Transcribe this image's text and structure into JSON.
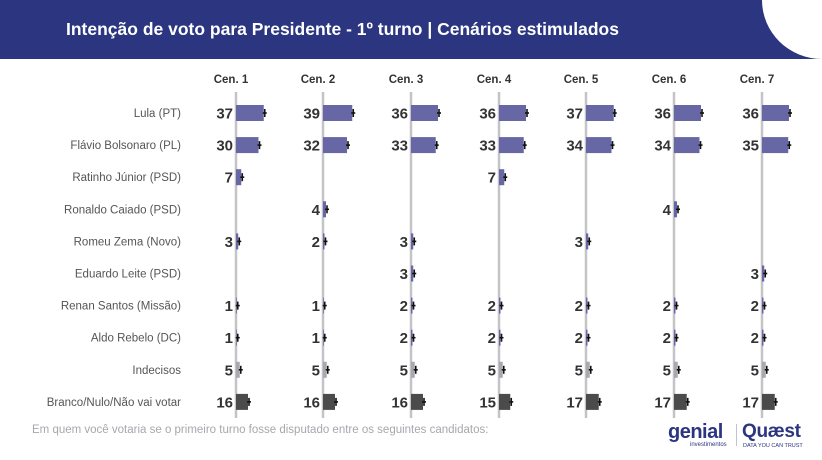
{
  "title": "Intenção de voto para Presidente - 1º turno | Cenários estimulados",
  "subtitle": "Em quem você votaria se o primeiro turno fosse disputado entre os seguintes candidatos:",
  "logos": {
    "genial": "genial",
    "genial_sub": "investimentos",
    "quaest": "Quæst",
    "quaest_sub": "DATA YOU CAN TRUST"
  },
  "colors": {
    "header": "#2b3580",
    "candidate_bar": "#6667a4",
    "indecisos_bar": "#a9a9ad",
    "branco_bar": "#4b4b4b",
    "axis_line": "#c4c4c8"
  },
  "chart_data": {
    "type": "bar",
    "scenarios": [
      "Cen. 1",
      "Cen. 2",
      "Cen. 3",
      "Cen. 4",
      "Cen. 5",
      "Cen. 6",
      "Cen. 7"
    ],
    "rows": [
      {
        "label": "Lula (PT)",
        "kind": "candidate",
        "values": [
          37,
          39,
          36,
          36,
          37,
          36,
          36
        ]
      },
      {
        "label": "Flávio Bolsonaro (PL)",
        "kind": "candidate",
        "values": [
          30,
          32,
          33,
          33,
          34,
          34,
          35
        ]
      },
      {
        "label": "Ratinho Júnior (PSD)",
        "kind": "candidate",
        "values": [
          7,
          null,
          null,
          7,
          null,
          null,
          null
        ]
      },
      {
        "label": "Ronaldo Caiado (PSD)",
        "kind": "candidate",
        "values": [
          null,
          4,
          null,
          null,
          null,
          4,
          null
        ]
      },
      {
        "label": "Romeu Zema (Novo)",
        "kind": "candidate",
        "values": [
          3,
          2,
          3,
          null,
          3,
          null,
          null
        ]
      },
      {
        "label": "Eduardo Leite (PSD)",
        "kind": "candidate",
        "values": [
          null,
          null,
          3,
          null,
          null,
          null,
          3
        ]
      },
      {
        "label": "Renan Santos (Missão)",
        "kind": "candidate",
        "values": [
          1,
          1,
          2,
          2,
          2,
          2,
          2
        ]
      },
      {
        "label": "Aldo Rebelo (DC)",
        "kind": "candidate",
        "values": [
          1,
          1,
          2,
          2,
          2,
          2,
          2
        ]
      },
      {
        "label": "Indecisos",
        "kind": "indecisos",
        "values": [
          5,
          5,
          5,
          5,
          5,
          5,
          5
        ]
      },
      {
        "label": "Branco/Nulo/Não vai votar",
        "kind": "branco",
        "values": [
          16,
          16,
          16,
          15,
          17,
          17,
          17
        ]
      }
    ]
  }
}
